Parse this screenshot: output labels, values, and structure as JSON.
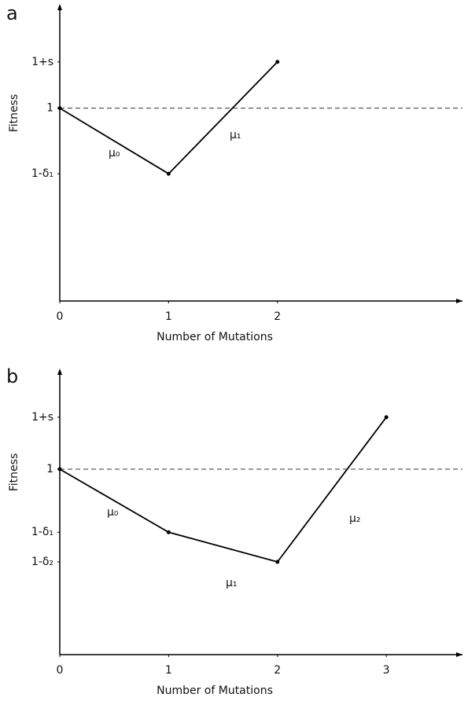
{
  "chart_data": [
    {
      "type": "line",
      "label": "a",
      "xlabel": "Number of Mutations",
      "ylabel": "Fitness",
      "x": [
        0,
        1,
        2
      ],
      "values": [
        1,
        0.66,
        1.24
      ],
      "color": "#000000",
      "xlim": [
        0,
        3.7
      ],
      "ylim": [
        0,
        1.5
      ],
      "xticks": [
        0,
        1,
        2
      ],
      "yticks": [
        {
          "value": 0.66,
          "label": "1-δ₁"
        },
        1,
        {
          "value": 1.24,
          "label": "1+s"
        }
      ],
      "hline": 1,
      "annotations": [
        "μ₀",
        "μ₁"
      ]
    },
    {
      "type": "line",
      "label": "b",
      "xlabel": "Number of Mutations",
      "ylabel": "Fitness",
      "x": [
        0,
        1,
        2,
        3
      ],
      "values": [
        1,
        0.66,
        0.5,
        1.28
      ],
      "color": "#000000",
      "xlim": [
        0,
        3.7
      ],
      "ylim": [
        0,
        1.5
      ],
      "xticks": [
        0,
        1,
        2,
        3
      ],
      "yticks": [
        {
          "value": 0.5,
          "label": "1-δ₂"
        },
        {
          "value": 0.66,
          "label": "1-δ₁"
        },
        1,
        {
          "value": 1.28,
          "label": "1+s"
        }
      ],
      "hline": 1,
      "annotations": [
        "μ₀",
        "μ₁",
        "μ₂"
      ]
    }
  ]
}
